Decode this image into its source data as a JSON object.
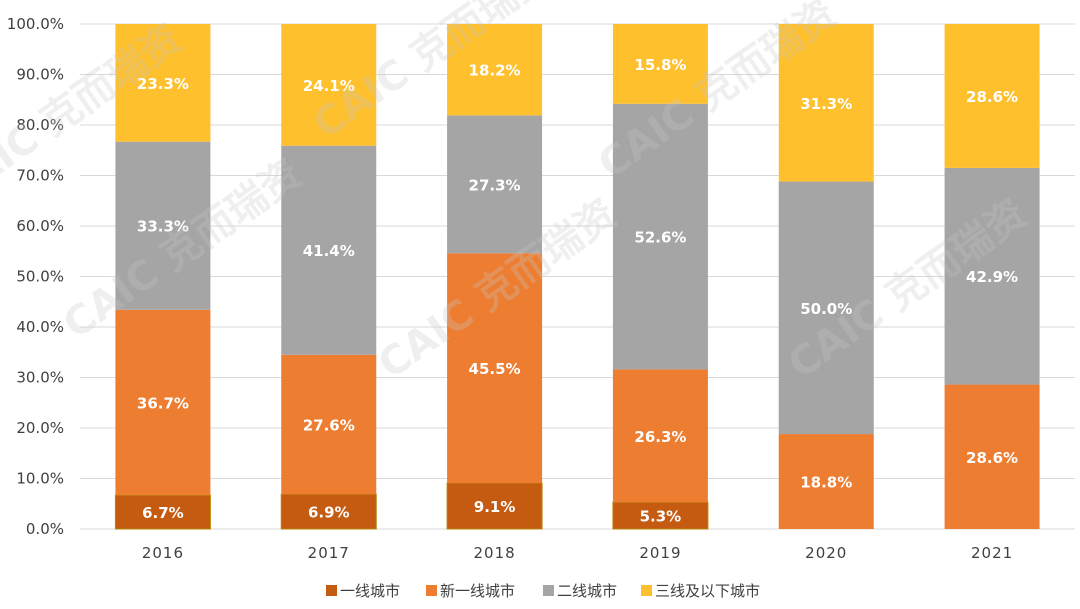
{
  "chart_data": {
    "type": "bar",
    "stacked": true,
    "categories": [
      "2016",
      "2017",
      "2018",
      "2019",
      "2020",
      "2021"
    ],
    "series": [
      {
        "name": "一线城市",
        "color": "#c55a11",
        "values": [
          6.7,
          6.9,
          9.1,
          5.3,
          0,
          0
        ],
        "labels": [
          "6.7%",
          "6.9%",
          "9.1%",
          "5.3%",
          "",
          ""
        ]
      },
      {
        "name": "新一线城市",
        "color": "#ed7d31",
        "values": [
          36.7,
          27.6,
          45.5,
          26.3,
          18.8,
          28.6
        ],
        "labels": [
          "36.7%",
          "27.6%",
          "45.5%",
          "26.3%",
          "18.8%",
          "28.6%"
        ]
      },
      {
        "name": "二线城市",
        "color": "#a5a5a5",
        "values": [
          33.3,
          41.4,
          27.3,
          52.6,
          50.0,
          42.9
        ],
        "labels": [
          "33.3%",
          "41.4%",
          "27.3%",
          "52.6%",
          "50.0%",
          "42.9%"
        ]
      },
      {
        "name": "三线及以下城市",
        "color": "#ffc02e",
        "values": [
          23.3,
          24.1,
          18.2,
          15.8,
          31.3,
          28.6
        ],
        "labels": [
          "23.3%",
          "24.1%",
          "18.2%",
          "15.8%",
          "31.3%",
          "28.6%"
        ]
      }
    ],
    "ylim": [
      0,
      100
    ],
    "yticks": [
      "0.0%",
      "10.0%",
      "20.0%",
      "30.0%",
      "40.0%",
      "50.0%",
      "60.0%",
      "70.0%",
      "80.0%",
      "90.0%",
      "100.0%"
    ],
    "grid": true,
    "legend_position": "bottom",
    "watermark": "CAIC 克而瑞资"
  }
}
